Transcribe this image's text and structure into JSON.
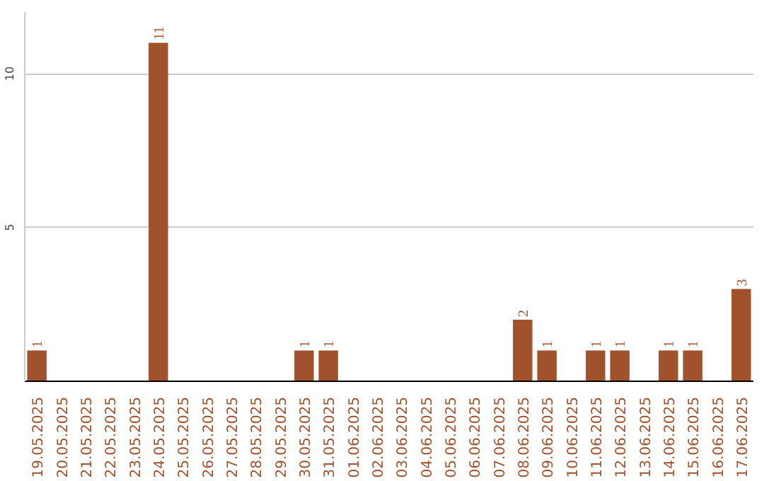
{
  "chart_data": {
    "type": "bar",
    "categories": [
      "19.05.2025",
      "20.05.2025",
      "21.05.2025",
      "22.05.2025",
      "23.05.2025",
      "24.05.2025",
      "25.05.2025",
      "26.05.2025",
      "27.05.2025",
      "28.05.2025",
      "29.05.2025",
      "30.05.2025",
      "31.05.2025",
      "01.06.2025",
      "02.06.2025",
      "03.06.2025",
      "04.06.2025",
      "05.06.2025",
      "06.06.2025",
      "07.06.2025",
      "08.06.2025",
      "09.06.2025",
      "10.06.2025",
      "11.06.2025",
      "12.06.2025",
      "13.06.2025",
      "14.06.2025",
      "15.06.2025",
      "16.06.2025",
      "17.06.2025"
    ],
    "values": [
      1,
      0,
      0,
      0,
      0,
      11,
      0,
      0,
      0,
      0,
      0,
      1,
      1,
      0,
      0,
      0,
      0,
      0,
      0,
      0,
      2,
      1,
      0,
      1,
      1,
      0,
      1,
      1,
      0,
      3
    ],
    "value_labels": [
      "1",
      null,
      null,
      null,
      null,
      "11",
      null,
      null,
      null,
      null,
      null,
      "1",
      "1",
      null,
      null,
      null,
      null,
      null,
      null,
      null,
      "2",
      "1",
      null,
      "1",
      "1",
      null,
      "1",
      "1",
      null,
      "3"
    ],
    "color": "#a0522d",
    "ylim": [
      0,
      12
    ],
    "yticks": [
      5,
      10
    ],
    "grid": "y"
  }
}
